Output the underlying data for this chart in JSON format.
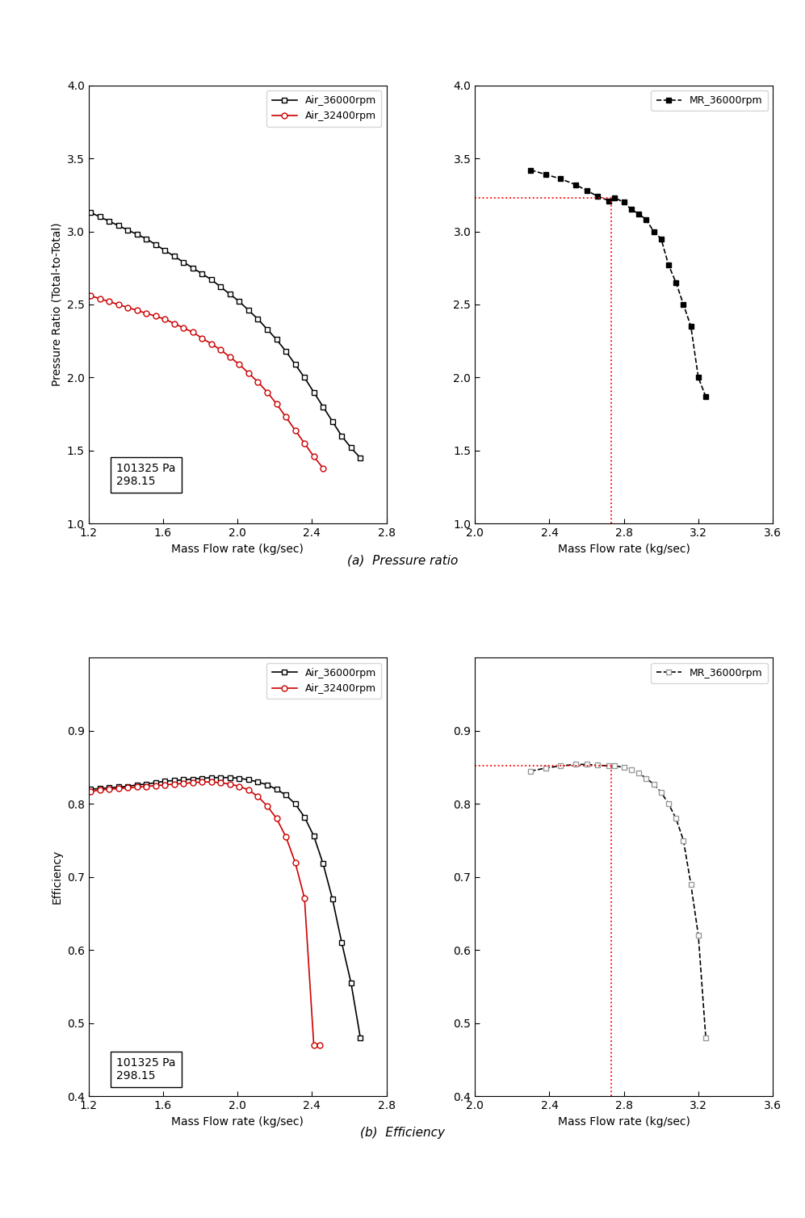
{
  "title_a": "(a)  Pressure ratio",
  "title_b": "(b)  Efficiency",
  "air36_pr_x": [
    1.21,
    1.26,
    1.31,
    1.36,
    1.41,
    1.46,
    1.51,
    1.56,
    1.61,
    1.66,
    1.71,
    1.76,
    1.81,
    1.86,
    1.91,
    1.96,
    2.01,
    2.06,
    2.11,
    2.16,
    2.21,
    2.26,
    2.31,
    2.36,
    2.41,
    2.46,
    2.51,
    2.56,
    2.61,
    2.66
  ],
  "air36_pr_y": [
    3.13,
    3.1,
    3.07,
    3.04,
    3.01,
    2.98,
    2.95,
    2.91,
    2.87,
    2.83,
    2.79,
    2.75,
    2.71,
    2.67,
    2.62,
    2.57,
    2.52,
    2.46,
    2.4,
    2.33,
    2.26,
    2.18,
    2.09,
    2.0,
    1.9,
    1.8,
    1.7,
    1.6,
    1.52,
    1.45
  ],
  "air32_pr_x": [
    1.21,
    1.26,
    1.31,
    1.36,
    1.41,
    1.46,
    1.51,
    1.56,
    1.61,
    1.66,
    1.71,
    1.76,
    1.81,
    1.86,
    1.91,
    1.96,
    2.01,
    2.06,
    2.11,
    2.16,
    2.21,
    2.26,
    2.31,
    2.36,
    2.41,
    2.46
  ],
  "air32_pr_y": [
    2.56,
    2.54,
    2.52,
    2.5,
    2.48,
    2.46,
    2.44,
    2.42,
    2.4,
    2.37,
    2.34,
    2.31,
    2.27,
    2.23,
    2.19,
    2.14,
    2.09,
    2.03,
    1.97,
    1.9,
    1.82,
    1.73,
    1.64,
    1.55,
    1.46,
    1.38
  ],
  "mr36_pr_x": [
    2.3,
    2.38,
    2.46,
    2.54,
    2.6,
    2.66,
    2.72,
    2.75,
    2.8,
    2.84,
    2.88,
    2.92,
    2.96,
    3.0,
    3.04,
    3.08,
    3.12,
    3.16,
    3.2,
    3.24
  ],
  "mr36_pr_y": [
    3.42,
    3.39,
    3.36,
    3.32,
    3.28,
    3.24,
    3.21,
    3.23,
    3.2,
    3.15,
    3.12,
    3.08,
    3.0,
    2.95,
    2.77,
    2.65,
    2.5,
    2.35,
    2.0,
    1.87
  ],
  "mr36_pr_dotted_x": 2.73,
  "mr36_pr_dotted_y": 3.23,
  "air36_eff_x": [
    1.21,
    1.26,
    1.31,
    1.36,
    1.41,
    1.46,
    1.51,
    1.56,
    1.61,
    1.66,
    1.71,
    1.76,
    1.81,
    1.86,
    1.91,
    1.96,
    2.01,
    2.06,
    2.11,
    2.16,
    2.21,
    2.26,
    2.31,
    2.36,
    2.41,
    2.46,
    2.51,
    2.56,
    2.61,
    2.66
  ],
  "air36_eff_y": [
    0.82,
    0.821,
    0.822,
    0.823,
    0.824,
    0.826,
    0.827,
    0.829,
    0.831,
    0.832,
    0.833,
    0.834,
    0.835,
    0.836,
    0.836,
    0.836,
    0.835,
    0.833,
    0.83,
    0.826,
    0.82,
    0.812,
    0.8,
    0.782,
    0.756,
    0.718,
    0.67,
    0.61,
    0.555,
    0.48
  ],
  "air32_eff_x": [
    1.21,
    1.26,
    1.31,
    1.36,
    1.41,
    1.46,
    1.51,
    1.56,
    1.61,
    1.66,
    1.71,
    1.76,
    1.81,
    1.86,
    1.91,
    1.96,
    2.01,
    2.06,
    2.11,
    2.16,
    2.21,
    2.26,
    2.31,
    2.36,
    2.41,
    2.44
  ],
  "air32_eff_y": [
    0.817,
    0.819,
    0.82,
    0.821,
    0.822,
    0.823,
    0.824,
    0.825,
    0.826,
    0.827,
    0.828,
    0.829,
    0.83,
    0.83,
    0.829,
    0.827,
    0.824,
    0.819,
    0.81,
    0.797,
    0.78,
    0.755,
    0.72,
    0.671,
    0.47,
    0.47
  ],
  "mr36_eff_x": [
    2.3,
    2.38,
    2.46,
    2.54,
    2.6,
    2.66,
    2.72,
    2.75,
    2.8,
    2.84,
    2.88,
    2.92,
    2.96,
    3.0,
    3.04,
    3.08,
    3.12,
    3.16,
    3.2,
    3.24
  ],
  "mr36_eff_y": [
    0.845,
    0.849,
    0.852,
    0.854,
    0.854,
    0.853,
    0.852,
    0.852,
    0.85,
    0.847,
    0.842,
    0.835,
    0.827,
    0.816,
    0.8,
    0.78,
    0.75,
    0.69,
    0.62,
    0.48
  ],
  "mr36_eff_dotted_x": 2.73,
  "mr36_eff_dotted_y": 0.852,
  "box_text_pr": "101325 Pa\n298.15",
  "box_text_eff": "101325 Pa\n298.15",
  "xlim_air": [
    1.2,
    2.8
  ],
  "ylim_pr_air": [
    1.0,
    4.0
  ],
  "xlim_mr": [
    2.0,
    3.6
  ],
  "ylim_pr_mr": [
    1.0,
    4.0
  ],
  "ylim_eff_air": [
    0.4,
    1.0
  ],
  "ylim_eff_mr": [
    0.4,
    1.0
  ],
  "xticks_air": [
    1.2,
    1.6,
    2.0,
    2.4,
    2.8
  ],
  "xticks_mr": [
    2.0,
    2.4,
    2.8,
    3.2,
    3.6
  ],
  "yticks_pr": [
    1.0,
    1.5,
    2.0,
    2.5,
    3.0,
    3.5,
    4.0
  ],
  "yticks_eff": [
    0.4,
    0.5,
    0.6,
    0.7,
    0.8,
    0.9
  ],
  "xlabel": "Mass Flow rate (kg/sec)",
  "ylabel_pr": "Pressure Ratio (Total-to-Total)",
  "ylabel_eff": "Efficiency",
  "color_air36": "#000000",
  "color_air32": "#cc0000",
  "color_mr36": "#000000",
  "color_mr36_eff": "#666666",
  "linewidth": 1.2,
  "markersize": 5
}
